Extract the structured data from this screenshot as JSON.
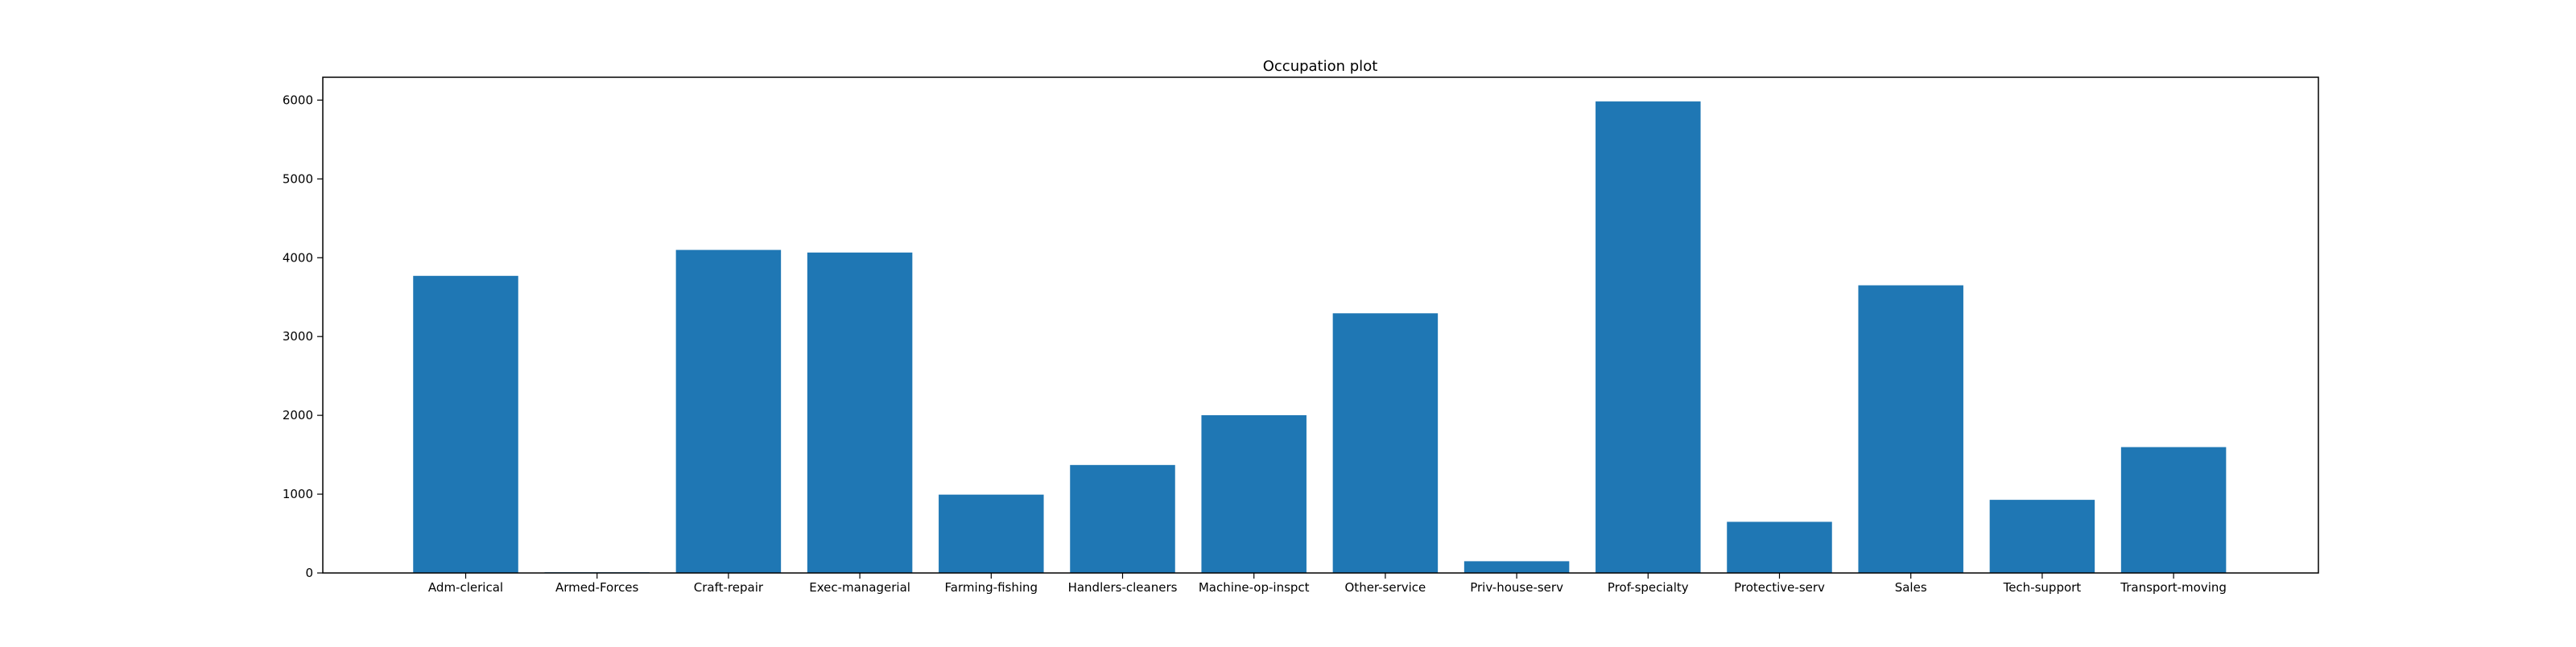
{
  "chart_data": {
    "type": "bar",
    "title": "Occupation plot",
    "xlabel": "",
    "ylabel": "",
    "categories": [
      "Adm-clerical",
      "Armed-Forces",
      "Craft-repair",
      "Exec-managerial",
      "Farming-fishing",
      "Handlers-cleaners",
      "Machine-op-inspct",
      "Other-service",
      "Priv-house-serv",
      "Prof-specialty",
      "Protective-serv",
      "Sales",
      "Tech-support",
      "Transport-moving"
    ],
    "values": [
      3770,
      9,
      4099,
      4066,
      994,
      1370,
      2002,
      3295,
      149,
      5983,
      649,
      3650,
      928,
      1597
    ],
    "ylim": [
      0,
      6290
    ],
    "yticks": [
      0,
      1000,
      2000,
      3000,
      4000,
      5000,
      6000
    ],
    "grid": false,
    "legend": "none",
    "bar_color": "#1f77b4"
  }
}
